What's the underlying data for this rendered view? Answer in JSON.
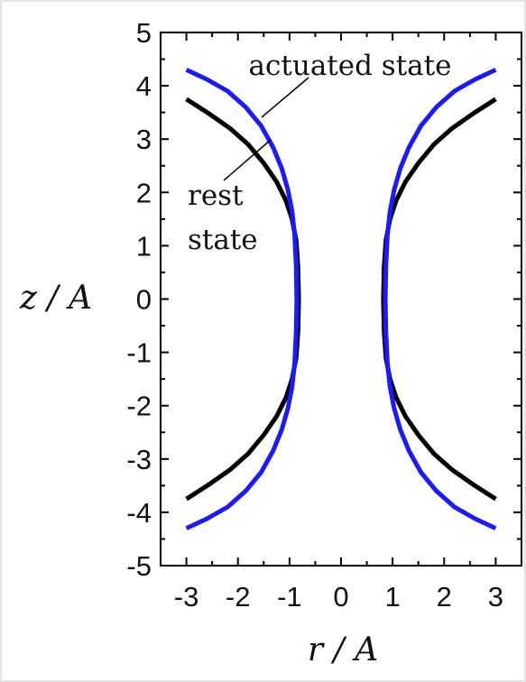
{
  "chart_data": {
    "type": "line",
    "xlabel": "r / A",
    "ylabel": "z / A",
    "xlim": [
      -3.5,
      3.5
    ],
    "ylim": [
      -5,
      5
    ],
    "xticks": [
      "-3",
      "-2",
      "-1",
      "0",
      "1",
      "2",
      "3"
    ],
    "yticks": [
      "5",
      "4",
      "3",
      "2",
      "1",
      "0",
      "-1",
      "-2",
      "-3",
      "-4",
      "-5"
    ],
    "grid": false,
    "series": [
      {
        "name": "rest state",
        "color": "#000000",
        "branches": [
          {
            "r": [
              0.82,
              0.835,
              0.87,
              0.95,
              1.07,
              1.25,
              1.5,
              1.8,
              2.15,
              2.55,
              3.0
            ],
            "z": [
              0.0,
              0.6,
              1.1,
              1.5,
              1.85,
              2.2,
              2.55,
              2.9,
              3.2,
              3.47,
              3.75
            ]
          }
        ],
        "symmetry": "mirror-r-and-z"
      },
      {
        "name": "actuated state",
        "color": "#1a1aff",
        "branches": [
          {
            "r": [
              0.86,
              0.87,
              0.9,
              0.95,
              1.03,
              1.15,
              1.32,
              1.55,
              1.85,
              2.2,
              2.6,
              3.0
            ],
            "z": [
              0.0,
              0.6,
              1.2,
              1.65,
              2.05,
              2.45,
              2.85,
              3.25,
              3.6,
              3.9,
              4.12,
              4.3
            ]
          }
        ],
        "symmetry": "mirror-r-and-z"
      }
    ],
    "annotations": [
      {
        "text": "actuated state"
      },
      {
        "lines": [
          "rest",
          "state"
        ]
      }
    ]
  }
}
